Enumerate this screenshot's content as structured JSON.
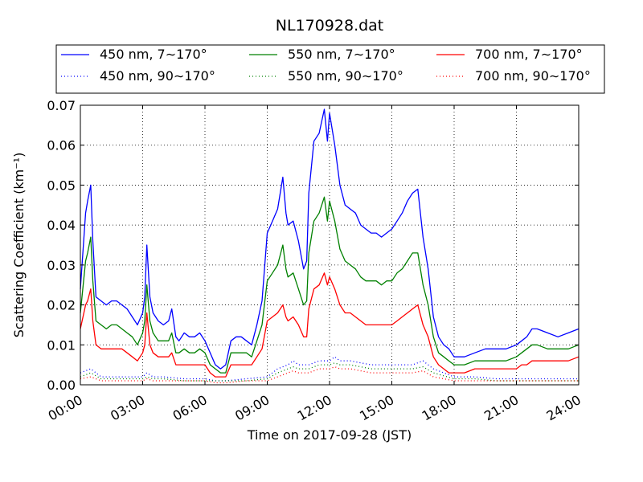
{
  "chart_data": {
    "type": "line",
    "title": "NL170928.dat",
    "xlabel": "Time on 2017-09-28 (JST)",
    "ylabel": "Scattering Coefficient (km⁻¹)",
    "x_ticks": [
      "00:00",
      "03:00",
      "06:00",
      "09:00",
      "12:00",
      "15:00",
      "18:00",
      "21:00",
      "24:00"
    ],
    "y_ticks": [
      "0.00",
      "0.01",
      "0.02",
      "0.03",
      "0.04",
      "0.05",
      "0.06",
      "0.07"
    ],
    "xlim": [
      0,
      24
    ],
    "ylim": [
      0,
      0.07
    ],
    "grid": true,
    "legend_position": "top",
    "series": [
      {
        "name": "450 nm, 7∼170°",
        "color": "#0000ff",
        "style": "solid",
        "x": [
          0.0,
          0.25,
          0.35,
          0.5,
          0.6,
          0.75,
          1.0,
          1.25,
          1.5,
          1.75,
          2.0,
          2.25,
          2.5,
          2.75,
          3.0,
          3.1,
          3.2,
          3.35,
          3.5,
          3.75,
          4.0,
          4.25,
          4.4,
          4.6,
          4.75,
          5.0,
          5.25,
          5.5,
          5.75,
          6.0,
          6.25,
          6.5,
          6.75,
          7.0,
          7.25,
          7.5,
          7.75,
          8.0,
          8.25,
          8.5,
          8.75,
          9.0,
          9.25,
          9.5,
          9.75,
          9.9,
          10.0,
          10.25,
          10.5,
          10.75,
          10.9,
          11.0,
          11.25,
          11.5,
          11.75,
          11.9,
          12.0,
          12.25,
          12.5,
          12.75,
          13.0,
          13.25,
          13.5,
          13.75,
          14.0,
          14.25,
          14.5,
          14.75,
          15.0,
          15.25,
          15.5,
          15.75,
          16.0,
          16.25,
          16.5,
          16.75,
          17.0,
          17.25,
          17.5,
          17.75,
          18.0,
          18.5,
          19.0,
          19.5,
          20.0,
          20.5,
          21.0,
          21.25,
          21.5,
          21.75,
          22.0,
          22.5,
          23.0,
          23.5,
          24.0
        ],
        "y": [
          0.024,
          0.043,
          0.046,
          0.05,
          0.036,
          0.022,
          0.021,
          0.02,
          0.021,
          0.021,
          0.02,
          0.019,
          0.017,
          0.015,
          0.018,
          0.022,
          0.035,
          0.022,
          0.018,
          0.016,
          0.015,
          0.016,
          0.019,
          0.012,
          0.011,
          0.013,
          0.012,
          0.012,
          0.013,
          0.011,
          0.008,
          0.005,
          0.004,
          0.005,
          0.011,
          0.012,
          0.012,
          0.011,
          0.01,
          0.015,
          0.021,
          0.038,
          0.041,
          0.044,
          0.052,
          0.043,
          0.04,
          0.041,
          0.036,
          0.029,
          0.031,
          0.048,
          0.061,
          0.063,
          0.069,
          0.061,
          0.068,
          0.06,
          0.05,
          0.045,
          0.044,
          0.043,
          0.04,
          0.039,
          0.038,
          0.038,
          0.037,
          0.038,
          0.039,
          0.041,
          0.043,
          0.046,
          0.048,
          0.049,
          0.037,
          0.029,
          0.017,
          0.012,
          0.01,
          0.009,
          0.007,
          0.007,
          0.008,
          0.009,
          0.009,
          0.009,
          0.01,
          0.011,
          0.012,
          0.014,
          0.014,
          0.013,
          0.012,
          0.013,
          0.014
        ]
      },
      {
        "name": "550 nm, 7∼170°",
        "color": "#008000",
        "style": "solid",
        "x": [
          0.0,
          0.25,
          0.35,
          0.5,
          0.6,
          0.75,
          1.0,
          1.25,
          1.5,
          1.75,
          2.0,
          2.25,
          2.5,
          2.75,
          3.0,
          3.1,
          3.2,
          3.35,
          3.5,
          3.75,
          4.0,
          4.25,
          4.4,
          4.6,
          4.75,
          5.0,
          5.25,
          5.5,
          5.75,
          6.0,
          6.25,
          6.5,
          6.75,
          7.0,
          7.25,
          7.5,
          7.75,
          8.0,
          8.25,
          8.5,
          8.75,
          9.0,
          9.25,
          9.5,
          9.75,
          9.9,
          10.0,
          10.25,
          10.5,
          10.75,
          10.9,
          11.0,
          11.25,
          11.5,
          11.75,
          11.9,
          12.0,
          12.25,
          12.5,
          12.75,
          13.0,
          13.25,
          13.5,
          13.75,
          14.0,
          14.25,
          14.5,
          14.75,
          15.0,
          15.25,
          15.5,
          15.75,
          16.0,
          16.25,
          16.5,
          16.75,
          17.0,
          17.25,
          17.5,
          17.75,
          18.0,
          18.5,
          19.0,
          19.5,
          20.0,
          20.5,
          21.0,
          21.25,
          21.5,
          21.75,
          22.0,
          22.5,
          23.0,
          23.5,
          24.0
        ],
        "y": [
          0.018,
          0.031,
          0.033,
          0.037,
          0.026,
          0.016,
          0.015,
          0.014,
          0.015,
          0.015,
          0.014,
          0.013,
          0.012,
          0.01,
          0.013,
          0.016,
          0.025,
          0.016,
          0.013,
          0.011,
          0.011,
          0.011,
          0.013,
          0.008,
          0.008,
          0.009,
          0.008,
          0.008,
          0.009,
          0.008,
          0.005,
          0.004,
          0.003,
          0.003,
          0.008,
          0.008,
          0.008,
          0.008,
          0.007,
          0.011,
          0.015,
          0.026,
          0.028,
          0.03,
          0.035,
          0.029,
          0.027,
          0.028,
          0.024,
          0.02,
          0.021,
          0.033,
          0.041,
          0.043,
          0.047,
          0.041,
          0.046,
          0.041,
          0.034,
          0.031,
          0.03,
          0.029,
          0.027,
          0.026,
          0.026,
          0.026,
          0.025,
          0.026,
          0.026,
          0.028,
          0.029,
          0.031,
          0.033,
          0.033,
          0.025,
          0.02,
          0.012,
          0.008,
          0.007,
          0.006,
          0.005,
          0.005,
          0.006,
          0.006,
          0.006,
          0.006,
          0.007,
          0.008,
          0.009,
          0.01,
          0.01,
          0.009,
          0.009,
          0.009,
          0.01
        ]
      },
      {
        "name": "700 nm, 7∼170°",
        "color": "#ff0000",
        "style": "solid",
        "x": [
          0.0,
          0.25,
          0.35,
          0.5,
          0.6,
          0.75,
          1.0,
          1.25,
          1.5,
          1.75,
          2.0,
          2.25,
          2.5,
          2.75,
          3.0,
          3.1,
          3.2,
          3.35,
          3.5,
          3.75,
          4.0,
          4.25,
          4.4,
          4.6,
          4.75,
          5.0,
          5.25,
          5.5,
          5.75,
          6.0,
          6.25,
          6.5,
          6.75,
          7.0,
          7.25,
          7.5,
          7.75,
          8.0,
          8.25,
          8.5,
          8.75,
          9.0,
          9.25,
          9.5,
          9.75,
          9.9,
          10.0,
          10.25,
          10.5,
          10.75,
          10.9,
          11.0,
          11.25,
          11.5,
          11.75,
          11.9,
          12.0,
          12.25,
          12.5,
          12.75,
          13.0,
          13.25,
          13.5,
          13.75,
          14.0,
          14.25,
          14.5,
          14.75,
          15.0,
          15.25,
          15.5,
          15.75,
          16.0,
          16.25,
          16.5,
          16.75,
          17.0,
          17.25,
          17.5,
          17.75,
          18.0,
          18.5,
          19.0,
          19.5,
          20.0,
          20.5,
          21.0,
          21.25,
          21.5,
          21.75,
          22.0,
          22.5,
          23.0,
          23.5,
          24.0
        ],
        "y": [
          0.014,
          0.02,
          0.021,
          0.024,
          0.016,
          0.01,
          0.009,
          0.009,
          0.009,
          0.009,
          0.009,
          0.008,
          0.007,
          0.006,
          0.008,
          0.01,
          0.018,
          0.01,
          0.008,
          0.007,
          0.007,
          0.007,
          0.008,
          0.005,
          0.005,
          0.005,
          0.005,
          0.005,
          0.005,
          0.005,
          0.003,
          0.002,
          0.002,
          0.002,
          0.005,
          0.005,
          0.005,
          0.005,
          0.005,
          0.007,
          0.009,
          0.016,
          0.017,
          0.018,
          0.02,
          0.017,
          0.016,
          0.017,
          0.015,
          0.012,
          0.012,
          0.019,
          0.024,
          0.025,
          0.028,
          0.025,
          0.027,
          0.024,
          0.02,
          0.018,
          0.018,
          0.017,
          0.016,
          0.015,
          0.015,
          0.015,
          0.015,
          0.015,
          0.015,
          0.016,
          0.017,
          0.018,
          0.019,
          0.02,
          0.015,
          0.012,
          0.007,
          0.005,
          0.004,
          0.003,
          0.003,
          0.003,
          0.004,
          0.004,
          0.004,
          0.004,
          0.004,
          0.005,
          0.005,
          0.006,
          0.006,
          0.006,
          0.006,
          0.006,
          0.007
        ]
      },
      {
        "name": "450 nm, 90∼170°",
        "color": "#0000ff",
        "style": "dotted",
        "x": [
          0,
          0.5,
          1,
          2,
          3,
          3.2,
          3.5,
          4,
          5,
          6,
          6.5,
          7,
          8,
          9,
          9.5,
          10,
          10.25,
          10.5,
          11,
          11.5,
          12,
          12.25,
          12.5,
          13,
          14,
          15,
          16,
          16.5,
          17,
          18,
          19,
          20,
          21,
          22,
          23,
          24
        ],
        "y": [
          0.003,
          0.004,
          0.002,
          0.002,
          0.002,
          0.003,
          0.002,
          0.002,
          0.0015,
          0.0015,
          0.001,
          0.001,
          0.0015,
          0.002,
          0.004,
          0.005,
          0.006,
          0.005,
          0.005,
          0.006,
          0.006,
          0.007,
          0.006,
          0.006,
          0.005,
          0.005,
          0.005,
          0.006,
          0.004,
          0.002,
          0.002,
          0.0015,
          0.0015,
          0.0015,
          0.0015,
          0.0015
        ]
      },
      {
        "name": "550 nm, 90∼170°",
        "color": "#008000",
        "style": "dotted",
        "x": [
          0,
          0.5,
          1,
          2,
          3,
          3.2,
          3.5,
          4,
          5,
          6,
          6.5,
          7,
          8,
          9,
          9.5,
          10,
          10.25,
          10.5,
          11,
          11.5,
          12,
          12.25,
          12.5,
          13,
          14,
          15,
          16,
          16.5,
          17,
          18,
          19,
          20,
          21,
          22,
          23,
          24
        ],
        "y": [
          0.002,
          0.003,
          0.0015,
          0.0015,
          0.0015,
          0.002,
          0.0015,
          0.0015,
          0.001,
          0.001,
          0.001,
          0.001,
          0.001,
          0.0015,
          0.003,
          0.004,
          0.0045,
          0.004,
          0.004,
          0.005,
          0.005,
          0.0055,
          0.005,
          0.005,
          0.004,
          0.004,
          0.004,
          0.0045,
          0.003,
          0.0015,
          0.0015,
          0.001,
          0.001,
          0.001,
          0.001,
          0.001
        ]
      },
      {
        "name": "700 nm, 90∼170°",
        "color": "#ff0000",
        "style": "dotted",
        "x": [
          0,
          0.5,
          1,
          2,
          3,
          3.2,
          3.5,
          4,
          5,
          6,
          6.5,
          7,
          8,
          9,
          9.5,
          10,
          10.25,
          10.5,
          11,
          11.5,
          12,
          12.25,
          12.5,
          13,
          14,
          15,
          16,
          16.5,
          17,
          18,
          19,
          20,
          21,
          22,
          23,
          24
        ],
        "y": [
          0.0015,
          0.002,
          0.001,
          0.001,
          0.001,
          0.0015,
          0.001,
          0.001,
          0.001,
          0.001,
          0.0005,
          0.0005,
          0.001,
          0.001,
          0.002,
          0.003,
          0.0035,
          0.003,
          0.003,
          0.004,
          0.004,
          0.0045,
          0.004,
          0.004,
          0.003,
          0.003,
          0.003,
          0.0035,
          0.002,
          0.001,
          0.001,
          0.001,
          0.001,
          0.001,
          0.001,
          0.001
        ]
      }
    ]
  }
}
